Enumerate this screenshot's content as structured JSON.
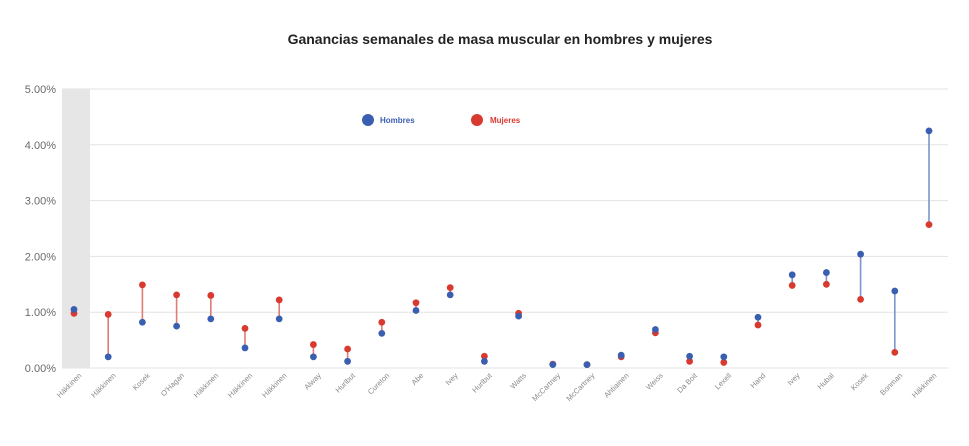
{
  "chart_data": {
    "type": "dumbbell",
    "title": "Ganancias semanales de masa muscular en hombres y mujeres",
    "xlabel": "",
    "ylabel": "",
    "ylim": [
      0,
      5
    ],
    "yticks": [
      "0.00%",
      "1.00%",
      "2.00%",
      "3.00%",
      "4.00%",
      "5.00%"
    ],
    "grid": true,
    "legend_position": "top-left",
    "colors": {
      "Hombres": "#3a5fb0",
      "Mujeres": "#d93a2f",
      "line_men_higher": "#7d95cc",
      "line_women_higher": "#e07c76"
    },
    "categories": [
      "Häkkinen",
      "Häkkinen",
      "Kosek",
      "O'Hagan",
      "Häkkinen",
      "Häkkinen",
      "Häkkinen",
      "Alway",
      "Hurlbut",
      "Cureton",
      "Abe",
      "Ivey",
      "Hurlbut",
      "Watts",
      "McCartney",
      "McCartney",
      "Ahtiainen",
      "Weiss",
      "Da Boit",
      "Lexell",
      "Hand",
      "Ivey",
      "Hubal",
      "Kosek",
      "Bonman",
      "Häkkinen"
    ],
    "series": [
      {
        "name": "Hombres",
        "values": [
          1.05,
          0.2,
          0.82,
          0.75,
          0.88,
          0.36,
          0.88,
          0.2,
          0.12,
          0.62,
          1.03,
          1.31,
          0.12,
          0.93,
          0.06,
          0.06,
          0.23,
          0.69,
          0.21,
          0.2,
          0.91,
          1.67,
          1.71,
          2.04,
          1.38,
          4.25
        ]
      },
      {
        "name": "Mujeres",
        "values": [
          0.98,
          0.96,
          1.49,
          1.31,
          1.3,
          0.71,
          1.22,
          0.42,
          0.34,
          0.82,
          1.17,
          1.44,
          0.21,
          0.98,
          0.07,
          0.06,
          0.2,
          0.63,
          0.12,
          0.1,
          0.77,
          1.48,
          1.5,
          1.23,
          0.28,
          2.57
        ]
      }
    ]
  }
}
